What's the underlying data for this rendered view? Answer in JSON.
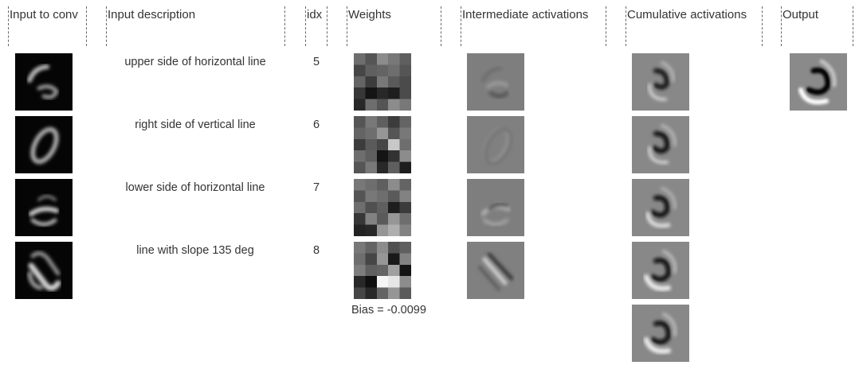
{
  "headers": [
    "Input to conv",
    "Input description",
    "idx",
    "Weights",
    "Intermediate activations",
    "Cumulative activations",
    "Output"
  ],
  "rows": [
    {
      "description": "upper side of horizontal line",
      "idx": "5"
    },
    {
      "description": "right side of vertical line",
      "idx": "6"
    },
    {
      "description": "lower side of horizontal line",
      "idx": "7"
    },
    {
      "description": "line with slope 135 deg",
      "idx": "8"
    }
  ],
  "bias_label": "Bias = -0.0099",
  "weights": [
    [
      [
        110,
        85,
        140,
        120,
        95
      ],
      [
        70,
        95,
        100,
        110,
        85
      ],
      [
        100,
        60,
        120,
        90,
        75
      ],
      [
        55,
        20,
        40,
        30,
        75
      ],
      [
        40,
        110,
        85,
        140,
        120
      ]
    ],
    [
      [
        85,
        120,
        95,
        60,
        100
      ],
      [
        100,
        110,
        150,
        85,
        120
      ],
      [
        60,
        90,
        70,
        200,
        110
      ],
      [
        110,
        95,
        20,
        50,
        140
      ],
      [
        85,
        120,
        40,
        95,
        30
      ]
    ],
    [
      [
        120,
        110,
        95,
        140,
        100
      ],
      [
        85,
        120,
        110,
        90,
        130
      ],
      [
        110,
        80,
        95,
        30,
        60
      ],
      [
        55,
        130,
        90,
        150,
        110
      ],
      [
        35,
        40,
        150,
        175,
        130
      ]
    ],
    [
      [
        120,
        100,
        140,
        80,
        95
      ],
      [
        110,
        70,
        150,
        25,
        130
      ],
      [
        125,
        95,
        100,
        160,
        20
      ],
      [
        40,
        15,
        245,
        230,
        140
      ],
      [
        70,
        40,
        100,
        150,
        90
      ]
    ]
  ],
  "colors": {
    "text": "#333333",
    "divider": "#666666",
    "inputBg": "#050505",
    "activationBg": "#808080"
  }
}
